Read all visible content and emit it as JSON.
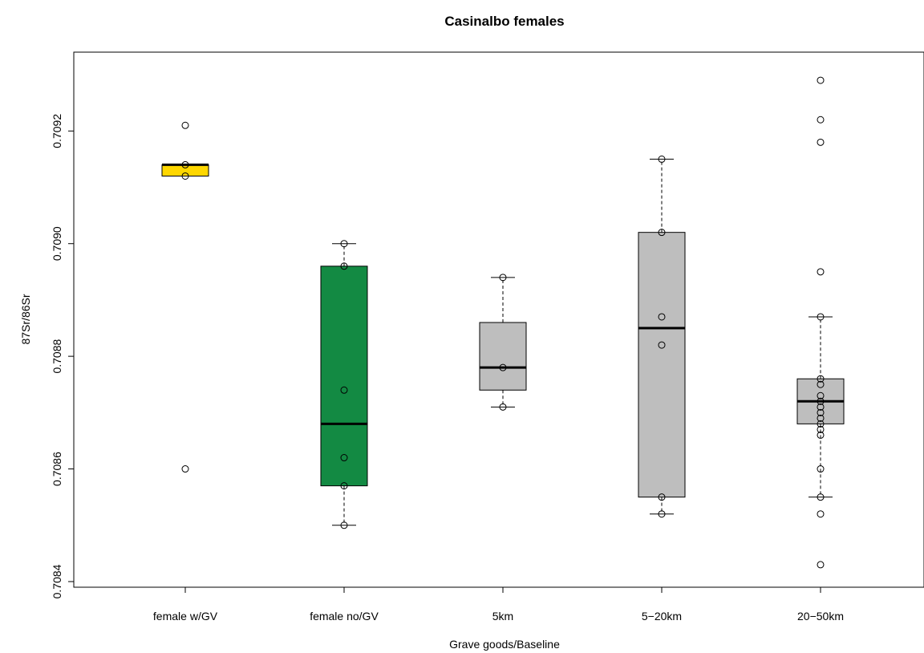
{
  "chart_data": {
    "type": "box",
    "title": "Casinalbo females",
    "xlabel": "Grave goods/Baseline",
    "ylabel": "87Sr/86Sr",
    "ylim": [
      0.70839,
      0.70934
    ],
    "y_ticks": [
      "0.7084",
      "0.7086",
      "0.7088",
      "0.7090",
      "0.7092"
    ],
    "grid": false,
    "categories": [
      "female w/GV",
      "female no/GV",
      "5km",
      "5−20km",
      "20−50km"
    ],
    "boxes": [
      {
        "category": "female w/GV",
        "fill": "#ffd700",
        "whisker_low": 0.70912,
        "q1": 0.70912,
        "median": 0.70914,
        "q3": 0.70914,
        "whisker_high": 0.70914
      },
      {
        "category": "female no/GV",
        "fill": "#138a43",
        "whisker_low": 0.7085,
        "q1": 0.70857,
        "median": 0.70868,
        "q3": 0.70896,
        "whisker_high": 0.709
      },
      {
        "category": "5km",
        "fill": "#bebebe",
        "whisker_low": 0.70871,
        "q1": 0.70874,
        "median": 0.70878,
        "q3": 0.70886,
        "whisker_high": 0.70894
      },
      {
        "category": "5−20km",
        "fill": "#bebebe",
        "whisker_low": 0.70852,
        "q1": 0.70855,
        "median": 0.70885,
        "q3": 0.70902,
        "whisker_high": 0.70915
      },
      {
        "category": "20−50km",
        "fill": "#bebebe",
        "whisker_low": 0.70855,
        "q1": 0.70868,
        "median": 0.70872,
        "q3": 0.70876,
        "whisker_high": 0.70887
      }
    ],
    "points": [
      {
        "category": "female w/GV",
        "values": [
          0.70921,
          0.70914,
          0.70912,
          0.7086
        ]
      },
      {
        "category": "female no/GV",
        "values": [
          0.709,
          0.70896,
          0.70874,
          0.70862,
          0.70857,
          0.7085
        ]
      },
      {
        "category": "5km",
        "values": [
          0.70894,
          0.70878,
          0.70871
        ]
      },
      {
        "category": "5−20km",
        "values": [
          0.70915,
          0.70902,
          0.70887,
          0.70882,
          0.70855,
          0.70852
        ]
      },
      {
        "category": "20−50km",
        "values": [
          0.70929,
          0.70922,
          0.70918,
          0.70895,
          0.70887,
          0.70876,
          0.70875,
          0.70873,
          0.70872,
          0.70871,
          0.7087,
          0.70869,
          0.70868,
          0.70867,
          0.70866,
          0.7086,
          0.70855,
          0.70852,
          0.70843
        ]
      }
    ]
  }
}
